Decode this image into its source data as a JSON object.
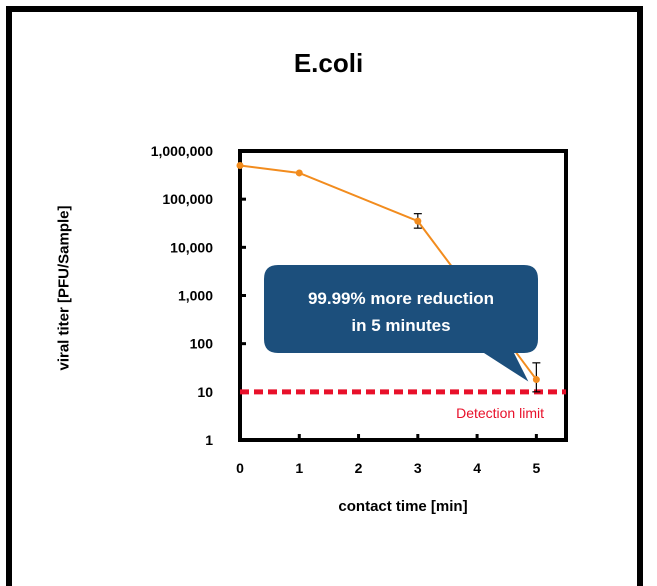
{
  "chart_data": {
    "type": "line",
    "title": "E.coli",
    "xlabel": "contact time [min]",
    "ylabel": "viral titer [PFU/Sample]",
    "xlim": [
      0,
      5.5
    ],
    "ylim": [
      1,
      1000000
    ],
    "yscale": "log",
    "xticks": [
      0,
      1,
      2,
      3,
      4,
      5
    ],
    "yticks": [
      1,
      10,
      100,
      1000,
      10000,
      100000,
      1000000
    ],
    "ytick_labels": [
      "1",
      "10",
      "100",
      "1,000",
      "10,000",
      "100,000",
      "1,000,000"
    ],
    "series": [
      {
        "color": "#f28c1e",
        "points": [
          {
            "x": 0,
            "y": 500000
          },
          {
            "x": 1,
            "y": 350000
          },
          {
            "x": 3,
            "y": 35000,
            "err_low": 25000,
            "err_high": 50000
          },
          {
            "x": 5,
            "y": 18,
            "err_low": 10,
            "err_high": 40
          }
        ]
      }
    ],
    "reference_line": {
      "y": 10,
      "label": "Detection limit",
      "color": "#e8102a",
      "style": "dashed"
    },
    "annotation": {
      "text_line1": "99.99% more reduction",
      "text_line2": "in 5 minutes",
      "color": "#1c4f7c"
    },
    "grid": false
  }
}
